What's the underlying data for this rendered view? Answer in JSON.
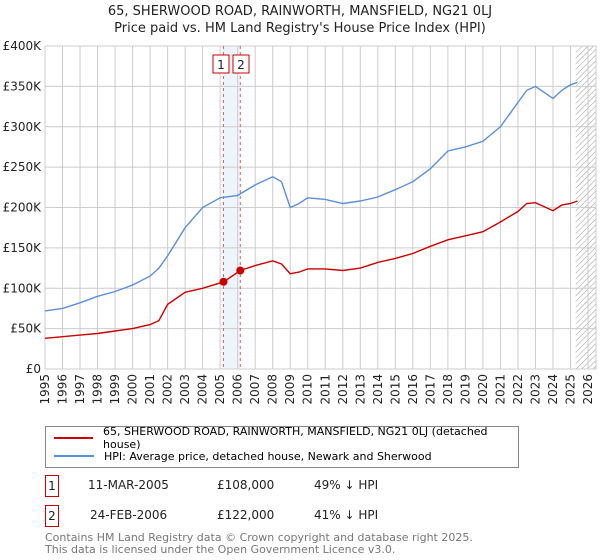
{
  "chart_data": {
    "type": "line",
    "title": "65, SHERWOOD ROAD, RAINWORTH, MANSFIELD, NG21 0LJ",
    "subtitle": "Price paid vs. HM Land Registry's House Price Index (HPI)",
    "xlim": [
      1995,
      2026
    ],
    "ylim": [
      0,
      400000
    ],
    "x_ticks": [
      "1995",
      "1996",
      "1997",
      "1998",
      "1999",
      "2000",
      "2001",
      "2002",
      "2003",
      "2004",
      "2005",
      "2006",
      "2007",
      "2008",
      "2009",
      "2010",
      "2011",
      "2012",
      "2013",
      "2014",
      "2015",
      "2016",
      "2017",
      "2018",
      "2019",
      "2020",
      "2021",
      "2022",
      "2023",
      "2024",
      "2025",
      "2026"
    ],
    "y_ticks": [
      {
        "v": 0,
        "label": "£0"
      },
      {
        "v": 50000,
        "label": "£50K"
      },
      {
        "v": 100000,
        "label": "£100K"
      },
      {
        "v": 150000,
        "label": "£150K"
      },
      {
        "v": 200000,
        "label": "£200K"
      },
      {
        "v": 250000,
        "label": "£250K"
      },
      {
        "v": 300000,
        "label": "£300K"
      },
      {
        "v": 350000,
        "label": "£350K"
      },
      {
        "v": 400000,
        "label": "£400K"
      }
    ],
    "grid": true,
    "series": [
      {
        "name": "65, SHERWOOD ROAD, RAINWORTH, MANSFIELD, NG21 0LJ (detached house)",
        "color": "#cc0000",
        "x": [
          1995,
          1996,
          1997,
          1998,
          1999,
          2000,
          2001,
          2001.5,
          2002,
          2003,
          2004,
          2005.2,
          2006.15,
          2007,
          2008,
          2008.5,
          2009,
          2009.5,
          2010,
          2011,
          2012,
          2013,
          2014,
          2015,
          2016,
          2017,
          2018,
          2019,
          2020,
          2021,
          2022,
          2022.5,
          2023,
          2024,
          2024.5,
          2025,
          2025.4
        ],
        "y": [
          38000,
          40000,
          42000,
          44000,
          47000,
          50000,
          55000,
          60000,
          80000,
          95000,
          100000,
          108000,
          122000,
          128000,
          134000,
          130000,
          118000,
          120000,
          124000,
          124000,
          122000,
          125000,
          132000,
          137000,
          143000,
          152000,
          160000,
          165000,
          170000,
          182000,
          195000,
          205000,
          206000,
          196000,
          203000,
          205000,
          208000
        ]
      },
      {
        "name": "HPI: Average price, detached house, Newark and Sherwood",
        "color": "#5b8fd6",
        "x": [
          1995,
          1996,
          1997,
          1998,
          1999,
          2000,
          2001,
          2001.5,
          2002,
          2003,
          2004,
          2005,
          2006,
          2007,
          2008,
          2008.5,
          2009,
          2009.5,
          2010,
          2011,
          2012,
          2013,
          2014,
          2015,
          2016,
          2017,
          2018,
          2019,
          2020,
          2021,
          2022,
          2022.5,
          2023,
          2024,
          2024.5,
          2025,
          2025.4
        ],
        "y": [
          72000,
          75000,
          82000,
          90000,
          96000,
          104000,
          115000,
          125000,
          140000,
          175000,
          200000,
          212000,
          215000,
          228000,
          238000,
          232000,
          200000,
          205000,
          212000,
          210000,
          205000,
          208000,
          213000,
          222000,
          232000,
          248000,
          270000,
          275000,
          282000,
          300000,
          330000,
          345000,
          350000,
          335000,
          345000,
          352000,
          355000
        ]
      }
    ],
    "sales": [
      {
        "id": "1",
        "x": 2005.19,
        "y": 108000
      },
      {
        "id": "2",
        "x": 2006.15,
        "y": 122000
      }
    ],
    "shaded_region": [
      2005.19,
      2006.15
    ],
    "hatched_from": 2025.3,
    "legend_position": "below"
  },
  "table": [
    {
      "id": "1",
      "date": "11-MAR-2005",
      "price": "£108,000",
      "hpi": "49% ↓ HPI"
    },
    {
      "id": "2",
      "date": "24-FEB-2006",
      "price": "£122,000",
      "hpi": "41% ↓ HPI"
    }
  ],
  "footer": [
    "Contains HM Land Registry data © Crown copyright and database right 2025.",
    "This data is licensed under the Open Government Licence v3.0."
  ]
}
